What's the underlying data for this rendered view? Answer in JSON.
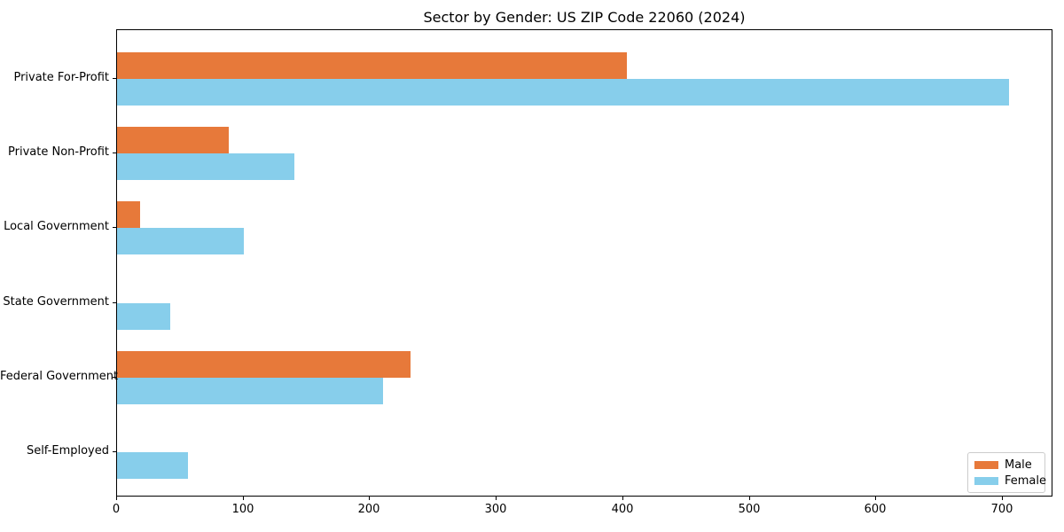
{
  "chart_data": {
    "type": "bar",
    "orientation": "horizontal",
    "title": "Sector by Gender: US ZIP Code 22060 (2024)",
    "categories": [
      "Private For-Profit",
      "Private Non-Profit",
      "Local Government",
      "State Government",
      "Federal Government",
      "Self-Employed"
    ],
    "series": [
      {
        "name": "Male",
        "color": "#e7793a",
        "values": [
          403,
          88,
          18,
          0,
          232,
          0
        ]
      },
      {
        "name": "Female",
        "color": "#87ceeb",
        "values": [
          705,
          140,
          100,
          42,
          210,
          56
        ]
      }
    ],
    "xlabel": "",
    "ylabel": "",
    "xlim": [
      0,
      740
    ],
    "xticks": [
      0,
      100,
      200,
      300,
      400,
      500,
      600,
      700
    ],
    "grid": false,
    "legend_position": "lower right"
  }
}
